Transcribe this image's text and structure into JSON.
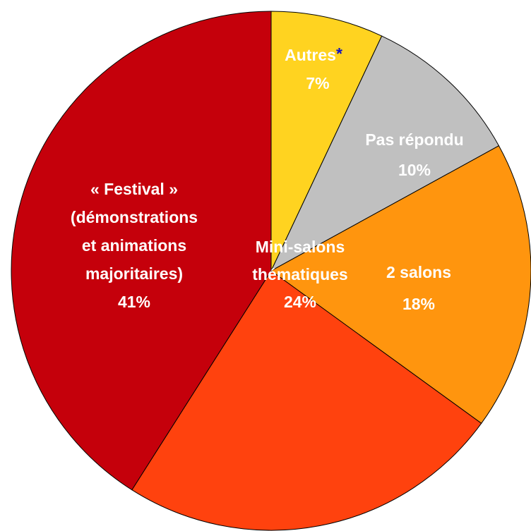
{
  "chart_data": {
    "type": "pie",
    "categories": [
      "Autres",
      "Pas répondu",
      "2 salons",
      "Mini-salons thématiques",
      "« Festival » (démonstrations et animations majoritaires)"
    ],
    "values": [
      7,
      10,
      18,
      24,
      41
    ],
    "value_labels": [
      "7%",
      "10%",
      "18%",
      "24%",
      "41%"
    ],
    "colors": [
      "#FFD320",
      "#C0C0C0",
      "#FF950E",
      "#FF420E",
      "#C5000B"
    ],
    "footnote_marker": "*"
  }
}
